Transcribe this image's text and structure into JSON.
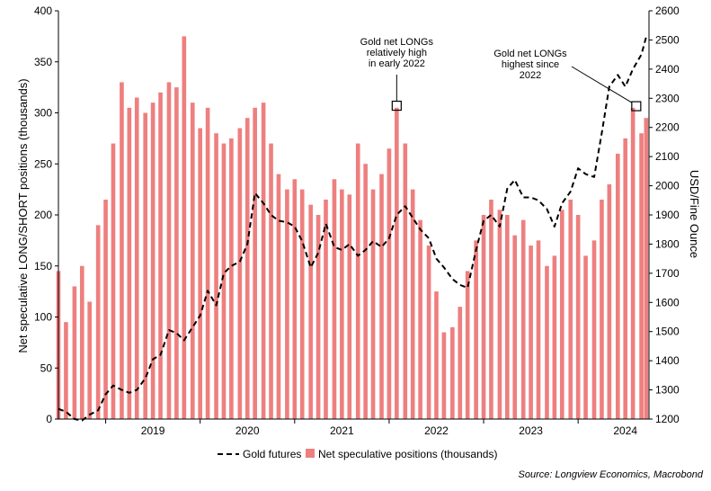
{
  "chart_data": {
    "type": "bar",
    "title": "",
    "source": "Source: Longview Economics, Macrobond",
    "left_axis": {
      "label": "Net speculative LONG/SHORT positions (thousands)",
      "range": [
        0,
        400
      ],
      "ticks": [
        "0",
        "50",
        "100",
        "150",
        "200",
        "250",
        "300",
        "350",
        "400"
      ]
    },
    "right_axis": {
      "label": "USD/Fine Ounce",
      "range": [
        1200,
        2600
      ],
      "ticks": [
        "1200",
        "1300",
        "1400",
        "1500",
        "1600",
        "1700",
        "1800",
        "1900",
        "2000",
        "2100",
        "2200",
        "2300",
        "2400",
        "2500",
        "2600"
      ]
    },
    "x_axis": {
      "range": [
        2018.5,
        2024.75
      ],
      "year_labels": [
        "2019",
        "2020",
        "2021",
        "2022",
        "2023",
        "2024"
      ]
    },
    "series": [
      {
        "name": "Net speculative positions (thousands)",
        "type": "bar",
        "axis": "left",
        "color": "#ee7f7f",
        "points": [
          [
            2018.5,
            145
          ],
          [
            2018.58,
            95
          ],
          [
            2018.67,
            130
          ],
          [
            2018.75,
            150
          ],
          [
            2018.83,
            115
          ],
          [
            2018.92,
            190
          ],
          [
            2019.0,
            215
          ],
          [
            2019.08,
            270
          ],
          [
            2019.17,
            330
          ],
          [
            2019.25,
            305
          ],
          [
            2019.33,
            315
          ],
          [
            2019.42,
            300
          ],
          [
            2019.5,
            310
          ],
          [
            2019.58,
            320
          ],
          [
            2019.67,
            330
          ],
          [
            2019.75,
            325
          ],
          [
            2019.83,
            375
          ],
          [
            2019.92,
            310
          ],
          [
            2020.0,
            285
          ],
          [
            2020.08,
            305
          ],
          [
            2020.17,
            280
          ],
          [
            2020.25,
            270
          ],
          [
            2020.33,
            275
          ],
          [
            2020.42,
            285
          ],
          [
            2020.5,
            295
          ],
          [
            2020.58,
            305
          ],
          [
            2020.67,
            310
          ],
          [
            2020.75,
            270
          ],
          [
            2020.83,
            240
          ],
          [
            2020.92,
            225
          ],
          [
            2021.0,
            235
          ],
          [
            2021.08,
            225
          ],
          [
            2021.17,
            210
          ],
          [
            2021.25,
            200
          ],
          [
            2021.33,
            215
          ],
          [
            2021.42,
            235
          ],
          [
            2021.5,
            225
          ],
          [
            2021.58,
            220
          ],
          [
            2021.67,
            270
          ],
          [
            2021.75,
            250
          ],
          [
            2021.83,
            225
          ],
          [
            2021.92,
            240
          ],
          [
            2022.0,
            265
          ],
          [
            2022.08,
            305
          ],
          [
            2022.17,
            270
          ],
          [
            2022.25,
            225
          ],
          [
            2022.33,
            195
          ],
          [
            2022.42,
            170
          ],
          [
            2022.5,
            125
          ],
          [
            2022.58,
            85
          ],
          [
            2022.67,
            90
          ],
          [
            2022.75,
            110
          ],
          [
            2022.83,
            145
          ],
          [
            2022.92,
            175
          ],
          [
            2023.0,
            200
          ],
          [
            2023.08,
            215
          ],
          [
            2023.17,
            205
          ],
          [
            2023.25,
            200
          ],
          [
            2023.33,
            180
          ],
          [
            2023.42,
            195
          ],
          [
            2023.5,
            170
          ],
          [
            2023.58,
            175
          ],
          [
            2023.67,
            150
          ],
          [
            2023.75,
            160
          ],
          [
            2023.83,
            205
          ],
          [
            2023.92,
            215
          ],
          [
            2024.0,
            200
          ],
          [
            2024.08,
            160
          ],
          [
            2024.17,
            175
          ],
          [
            2024.25,
            215
          ],
          [
            2024.33,
            230
          ],
          [
            2024.42,
            260
          ],
          [
            2024.5,
            275
          ],
          [
            2024.58,
            305
          ],
          [
            2024.67,
            280
          ],
          [
            2024.72,
            295
          ]
        ]
      },
      {
        "name": "Gold futures",
        "type": "line",
        "axis": "right",
        "color": "#000000",
        "style": "dashed",
        "points": [
          [
            2018.5,
            1235
          ],
          [
            2018.58,
            1225
          ],
          [
            2018.67,
            1200
          ],
          [
            2018.75,
            1195
          ],
          [
            2018.83,
            1215
          ],
          [
            2018.92,
            1230
          ],
          [
            2019.0,
            1285
          ],
          [
            2019.08,
            1315
          ],
          [
            2019.17,
            1300
          ],
          [
            2019.25,
            1290
          ],
          [
            2019.33,
            1300
          ],
          [
            2019.42,
            1340
          ],
          [
            2019.5,
            1405
          ],
          [
            2019.58,
            1420
          ],
          [
            2019.67,
            1505
          ],
          [
            2019.75,
            1495
          ],
          [
            2019.83,
            1470
          ],
          [
            2019.92,
            1515
          ],
          [
            2020.0,
            1555
          ],
          [
            2020.08,
            1640
          ],
          [
            2020.17,
            1590
          ],
          [
            2020.25,
            1700
          ],
          [
            2020.33,
            1725
          ],
          [
            2020.42,
            1740
          ],
          [
            2020.5,
            1800
          ],
          [
            2020.58,
            1975
          ],
          [
            2020.67,
            1940
          ],
          [
            2020.75,
            1900
          ],
          [
            2020.83,
            1880
          ],
          [
            2020.92,
            1875
          ],
          [
            2021.0,
            1860
          ],
          [
            2021.08,
            1810
          ],
          [
            2021.17,
            1720
          ],
          [
            2021.25,
            1770
          ],
          [
            2021.33,
            1870
          ],
          [
            2021.42,
            1790
          ],
          [
            2021.5,
            1780
          ],
          [
            2021.58,
            1800
          ],
          [
            2021.67,
            1760
          ],
          [
            2021.75,
            1780
          ],
          [
            2021.83,
            1810
          ],
          [
            2021.92,
            1790
          ],
          [
            2022.0,
            1820
          ],
          [
            2022.08,
            1900
          ],
          [
            2022.17,
            1930
          ],
          [
            2022.25,
            1890
          ],
          [
            2022.33,
            1850
          ],
          [
            2022.42,
            1820
          ],
          [
            2022.5,
            1750
          ],
          [
            2022.58,
            1720
          ],
          [
            2022.67,
            1680
          ],
          [
            2022.75,
            1660
          ],
          [
            2022.83,
            1650
          ],
          [
            2022.92,
            1780
          ],
          [
            2023.0,
            1880
          ],
          [
            2023.08,
            1900
          ],
          [
            2023.17,
            1860
          ],
          [
            2023.25,
            1990
          ],
          [
            2023.33,
            2020
          ],
          [
            2023.42,
            1960
          ],
          [
            2023.5,
            1960
          ],
          [
            2023.58,
            1950
          ],
          [
            2023.67,
            1920
          ],
          [
            2023.75,
            1860
          ],
          [
            2023.83,
            1940
          ],
          [
            2023.92,
            1980
          ],
          [
            2024.0,
            2060
          ],
          [
            2024.08,
            2040
          ],
          [
            2024.17,
            2030
          ],
          [
            2024.25,
            2180
          ],
          [
            2024.33,
            2340
          ],
          [
            2024.42,
            2380
          ],
          [
            2024.5,
            2340
          ],
          [
            2024.58,
            2400
          ],
          [
            2024.67,
            2450
          ],
          [
            2024.72,
            2510
          ]
        ]
      }
    ],
    "annotations": [
      {
        "lines": [
          "Gold net LONGs",
          "relatively high",
          "in early 2022"
        ],
        "x": 2022.08,
        "y": 307
      },
      {
        "lines": [
          "Gold net LONGs",
          "highest since",
          "2022"
        ],
        "x": 2024.72,
        "y": 318
      }
    ],
    "legend": {
      "placement": "bottom",
      "items": [
        {
          "label": "Gold futures",
          "kind": "dashed-line",
          "color": "#000000"
        },
        {
          "label": "Net speculative positions (thousands)",
          "kind": "square",
          "color": "#ee7f7f"
        }
      ]
    },
    "grid": false
  }
}
